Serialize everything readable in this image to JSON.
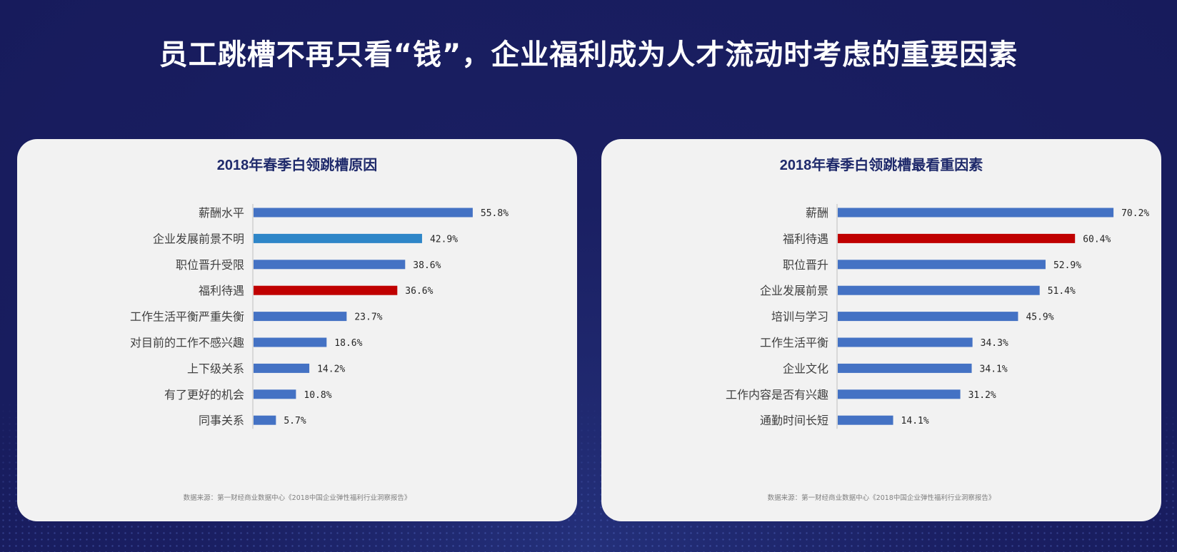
{
  "page_title": "员工跳槽不再只看“钱”，企业福利成为人才流动时考虑的重要因素",
  "colors": {
    "primary_bar": "#4472c4",
    "highlight_bar": "#c00000",
    "secondary_bar": "#2e86c8",
    "background": "#171b5c"
  },
  "chart_data": [
    {
      "type": "bar",
      "orientation": "horizontal",
      "title": "2018年春季白领跳槽原因",
      "categories": [
        "薪酬水平",
        "企业发展前景不明",
        "职位晋升受限",
        "福利待遇",
        "工作生活平衡严重失衡",
        "对目前的工作不感兴趣",
        "上下级关系",
        "有了更好的机会",
        "同事关系"
      ],
      "values": [
        55.8,
        42.9,
        38.6,
        36.6,
        23.7,
        18.6,
        14.2,
        10.8,
        5.7
      ],
      "value_labels": [
        "55.8%",
        "42.9%",
        "38.6%",
        "36.6%",
        "23.7%",
        "18.6%",
        "14.2%",
        "10.8%",
        "5.7%"
      ],
      "bar_colors": [
        "#4472c4",
        "#2e86c8",
        "#4472c4",
        "#c00000",
        "#4472c4",
        "#4472c4",
        "#4472c4",
        "#4472c4",
        "#4472c4"
      ],
      "xlim": [
        0,
        100
      ],
      "source": "数据来源：第一财经商业数据中心《2018中国企业弹性福利行业洞察报告》"
    },
    {
      "type": "bar",
      "orientation": "horizontal",
      "title": "2018年春季白领跳槽最看重因素",
      "categories": [
        "薪酬",
        "福利待遇",
        "职位晋升",
        "企业发展前景",
        "培训与学习",
        "工作生活平衡",
        "企业文化",
        "工作内容是否有兴趣",
        "通勤时间长短"
      ],
      "values": [
        70.2,
        60.4,
        52.9,
        51.4,
        45.9,
        34.3,
        34.1,
        31.2,
        14.1
      ],
      "value_labels": [
        "70.2%",
        "60.4%",
        "52.9%",
        "51.4%",
        "45.9%",
        "34.3%",
        "34.1%",
        "31.2%",
        "14.1%"
      ],
      "bar_colors": [
        "#4472c4",
        "#c00000",
        "#4472c4",
        "#4472c4",
        "#4472c4",
        "#4472c4",
        "#4472c4",
        "#4472c4",
        "#4472c4"
      ],
      "xlim": [
        0,
        100
      ],
      "source": "数据来源：第一财经商业数据中心《2018中国企业弹性福利行业洞察报告》"
    }
  ]
}
